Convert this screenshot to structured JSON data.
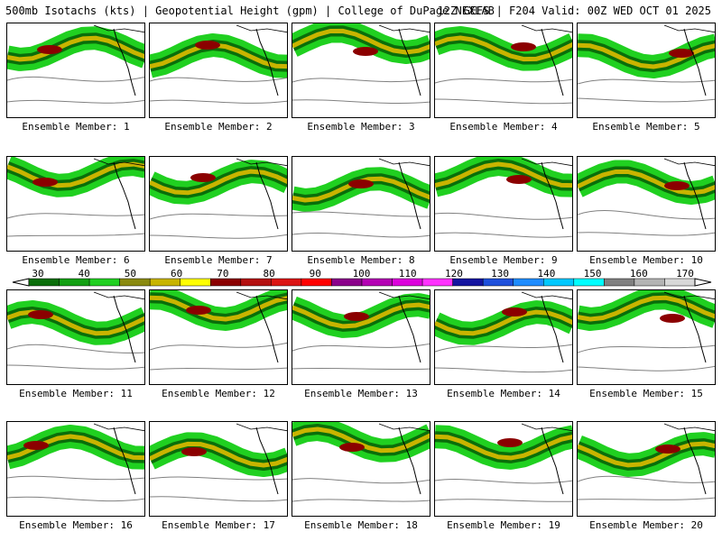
{
  "header": {
    "left": "500mb Isotachs (kts) | Geopotential Height (gpm) | College of DuPage NEXLAB",
    "right": "12Z GEFS | F204 Valid: 00Z WED OCT 01 2025"
  },
  "members": [
    "Ensemble Member: 1",
    "Ensemble Member: 2",
    "Ensemble Member: 3",
    "Ensemble Member: 4",
    "Ensemble Member: 5",
    "Ensemble Member: 6",
    "Ensemble Member: 7",
    "Ensemble Member: 8",
    "Ensemble Member: 9",
    "Ensemble Member: 10",
    "Ensemble Member: 11",
    "Ensemble Member: 12",
    "Ensemble Member: 13",
    "Ensemble Member: 14",
    "Ensemble Member: 15",
    "Ensemble Member: 16",
    "Ensemble Member: 17",
    "Ensemble Member: 18",
    "Ensemble Member: 19",
    "Ensemble Member: 20"
  ],
  "colorbar": {
    "labels": [
      "30",
      "40",
      "50",
      "60",
      "70",
      "80",
      "90",
      "100",
      "110",
      "120",
      "130",
      "140",
      "150",
      "160",
      "170"
    ],
    "colors": [
      "#0a6e0a",
      "#12a012",
      "#20d020",
      "#8a8a10",
      "#c8b400",
      "#ffff00",
      "#8b0000",
      "#b41010",
      "#dc1414",
      "#ff0000",
      "#8b008b",
      "#b400b4",
      "#dc00dc",
      "#ff32ff",
      "#1414a0",
      "#1e50dc",
      "#1e8cff",
      "#00c8ff",
      "#00ffff",
      "#808080",
      "#b4b4b4",
      "#d8d8d8"
    ]
  }
}
